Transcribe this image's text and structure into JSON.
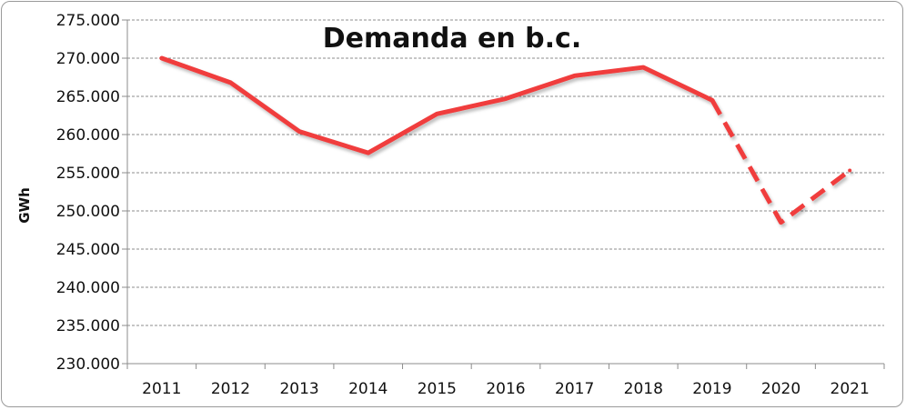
{
  "chart_data": {
    "type": "line",
    "title": "Demanda en b.c.",
    "ylabel": "GWh",
    "xlabel": "",
    "categories": [
      "2011",
      "2012",
      "2013",
      "2014",
      "2015",
      "2016",
      "2017",
      "2018",
      "2019",
      "2020",
      "2021"
    ],
    "values": [
      270000,
      266800,
      260400,
      257600,
      262700,
      264700,
      267700,
      268800,
      264500,
      248500,
      255300
    ],
    "dashed_from": "2019",
    "ylim": [
      230000,
      275000
    ],
    "yticks": [
      230000,
      235000,
      240000,
      245000,
      250000,
      255000,
      260000,
      265000,
      270000,
      275000
    ],
    "ytick_labels": [
      "230.000",
      "235.000",
      "240.000",
      "245.000",
      "250.000",
      "255.000",
      "260.000",
      "265.000",
      "270.000",
      "275.000"
    ],
    "grid": true,
    "line_color": "#f03c3c"
  }
}
